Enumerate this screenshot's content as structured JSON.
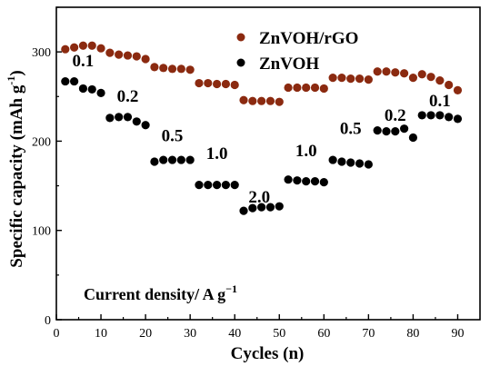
{
  "chart_data": {
    "type": "scatter",
    "xlabel": "Cycles (n)",
    "ylabel": "Specific capacity (mAh g",
    "ylabel_sup": "-1",
    "ylabel_close": ")",
    "xlim": [
      0,
      95
    ],
    "ylim": [
      0,
      350
    ],
    "x_ticks": [
      "0",
      "10",
      "20",
      "30",
      "40",
      "50",
      "60",
      "70",
      "80",
      "90"
    ],
    "y_ticks": [
      "0",
      "100",
      "200",
      "300"
    ],
    "legend": [
      {
        "name": "ZnVOH/rGO",
        "color": "#8b2a10"
      },
      {
        "name": "ZnVOH",
        "color": "#000000"
      }
    ],
    "annotation_main": "Current density/ A g",
    "annotation_sup": "−1",
    "rate_labels": [
      {
        "text": "0.1",
        "x": 6,
        "y": 284
      },
      {
        "text": "0.2",
        "x": 16,
        "y": 244
      },
      {
        "text": "0.5",
        "x": 26,
        "y": 200
      },
      {
        "text": "1.0",
        "x": 36,
        "y": 180
      },
      {
        "text": "2.0",
        "x": 45.5,
        "y": 131
      },
      {
        "text": "1.0",
        "x": 56,
        "y": 183
      },
      {
        "text": "0.5",
        "x": 66,
        "y": 208
      },
      {
        "text": "0.2",
        "x": 76,
        "y": 223
      },
      {
        "text": "0.1",
        "x": 86,
        "y": 239
      }
    ],
    "series": [
      {
        "name": "ZnVOH/rGO",
        "color": "#8b2a10",
        "x": [
          2,
          4,
          6,
          8,
          10,
          12,
          14,
          16,
          18,
          20,
          22,
          24,
          26,
          28,
          30,
          32,
          34,
          36,
          38,
          40,
          42,
          44,
          46,
          48,
          50,
          52,
          54,
          56,
          58,
          60,
          62,
          64,
          66,
          68,
          70,
          72,
          74,
          76,
          78,
          80,
          82,
          84,
          86,
          88,
          90
        ],
        "values": [
          303,
          305,
          307,
          307,
          304,
          299,
          297,
          296,
          295,
          292,
          283,
          282,
          281,
          281,
          280,
          265,
          265,
          264,
          264,
          263,
          246,
          245,
          245,
          245,
          244,
          260,
          260,
          260,
          260,
          259,
          271,
          271,
          270,
          270,
          269,
          278,
          278,
          277,
          276,
          271,
          275,
          272,
          268,
          263,
          257
        ]
      },
      {
        "name": "ZnVOH",
        "color": "#000000",
        "x": [
          2,
          4,
          6,
          8,
          10,
          12,
          14,
          16,
          18,
          20,
          22,
          24,
          26,
          28,
          30,
          32,
          34,
          36,
          38,
          40,
          42,
          44,
          46,
          48,
          50,
          52,
          54,
          56,
          58,
          60,
          62,
          64,
          66,
          68,
          70,
          72,
          74,
          76,
          78,
          80,
          82,
          84,
          86,
          88,
          90
        ],
        "values": [
          267,
          267,
          259,
          258,
          254,
          226,
          227,
          227,
          222,
          218,
          177,
          179,
          179,
          179,
          179,
          151,
          151,
          151,
          151,
          151,
          122,
          125,
          126,
          126,
          127,
          157,
          156,
          155,
          155,
          154,
          179,
          177,
          176,
          175,
          174,
          212,
          211,
          211,
          214,
          204,
          229,
          229,
          229,
          227,
          225
        ]
      }
    ]
  }
}
